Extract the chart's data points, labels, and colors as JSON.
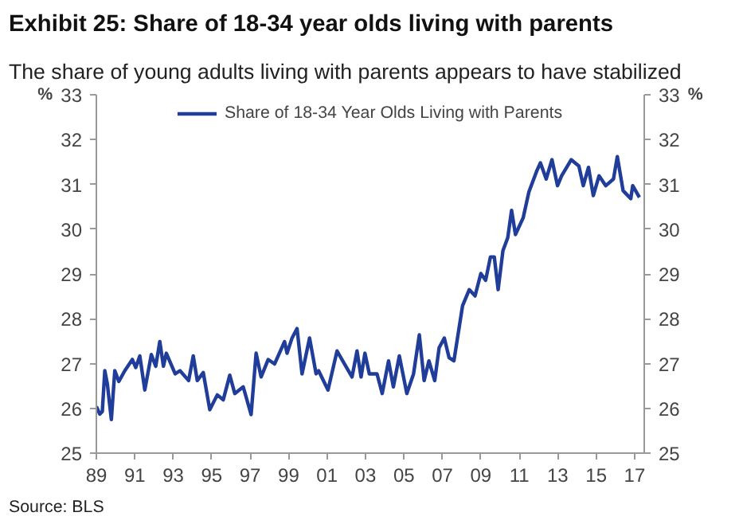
{
  "chart_data": {
    "type": "line",
    "title": "Exhibit 25: Share of 18-34 year olds living with parents",
    "subtitle": "The share of young adults living with parents appears to have stabilized",
    "ylabel": "%",
    "y2label": "%",
    "x": [
      1989.0,
      1989.18,
      1989.31,
      1989.44,
      1989.57,
      1989.78,
      1989.96,
      1990.17,
      1990.48,
      1990.87,
      1991.05,
      1991.26,
      1991.52,
      1991.86,
      1992.09,
      1992.3,
      1992.49,
      1992.64,
      1993.1,
      1993.35,
      1993.8,
      1994.04,
      1994.25,
      1994.56,
      1994.9,
      1995.29,
      1995.6,
      1995.94,
      1996.2,
      1996.64,
      1997.05,
      1997.31,
      1997.57,
      1997.94,
      1998.27,
      1998.79,
      1998.92,
      1999.18,
      1999.44,
      1999.7,
      2000.09,
      2000.43,
      2000.56,
      2001.05,
      2001.52,
      2001.91,
      2002.3,
      2002.56,
      2002.77,
      2002.97,
      2003.2,
      2003.6,
      2003.87,
      2004.2,
      2004.45,
      2004.76,
      2005.15,
      2005.5,
      2005.8,
      2006.05,
      2006.3,
      2006.6,
      2006.83,
      2007.1,
      2007.35,
      2007.6,
      2008.05,
      2008.4,
      2008.7,
      2009.0,
      2009.25,
      2009.5,
      2009.7,
      2009.9,
      2010.15,
      2010.4,
      2010.6,
      2010.8,
      2011.2,
      2011.5,
      2011.9,
      2012.1,
      2012.4,
      2012.7,
      2012.99,
      2013.2,
      2013.7,
      2014.1,
      2014.33,
      2014.6,
      2014.85,
      2015.15,
      2015.5,
      2015.9,
      2016.1,
      2016.4,
      2016.8,
      2016.9,
      2017.25
    ],
    "series": [
      {
        "name": "Share of 18-34 Year Olds Living with Parents",
        "color": "#1f3d99",
        "values": [
          26.04,
          25.87,
          25.93,
          26.84,
          26.55,
          25.75,
          26.84,
          26.6,
          26.84,
          27.09,
          26.91,
          27.17,
          26.41,
          27.2,
          26.94,
          27.49,
          26.94,
          27.23,
          26.77,
          26.84,
          26.62,
          27.17,
          26.62,
          26.8,
          25.97,
          26.3,
          26.19,
          26.74,
          26.33,
          26.48,
          25.86,
          27.23,
          26.7,
          27.09,
          26.99,
          27.49,
          27.23,
          27.57,
          27.78,
          26.77,
          27.57,
          26.77,
          26.84,
          26.41,
          27.28,
          26.99,
          26.7,
          27.28,
          26.7,
          27.23,
          26.77,
          26.77,
          26.33,
          27.06,
          26.48,
          27.17,
          26.33,
          26.77,
          27.64,
          26.62,
          27.06,
          26.62,
          27.35,
          27.57,
          27.13,
          27.06,
          28.29,
          28.65,
          28.51,
          29.01,
          28.86,
          29.38,
          29.38,
          28.65,
          29.52,
          29.81,
          30.42,
          29.88,
          30.25,
          30.83,
          31.29,
          31.48,
          31.12,
          31.55,
          30.97,
          31.19,
          31.55,
          31.41,
          30.97,
          31.38,
          30.75,
          31.19,
          30.97,
          31.12,
          31.62,
          30.86,
          30.68,
          30.97,
          30.71
        ]
      }
    ],
    "xlim": [
      1989.0,
      2017.5
    ],
    "xticks": [
      {
        "value": 1989,
        "label": "89"
      },
      {
        "value": 1991,
        "label": "91"
      },
      {
        "value": 1993,
        "label": "93"
      },
      {
        "value": 1995,
        "label": "95"
      },
      {
        "value": 1997,
        "label": "97"
      },
      {
        "value": 1999,
        "label": "99"
      },
      {
        "value": 2001,
        "label": "01"
      },
      {
        "value": 2003,
        "label": "03"
      },
      {
        "value": 2005,
        "label": "05"
      },
      {
        "value": 2007,
        "label": "07"
      },
      {
        "value": 2009,
        "label": "09"
      },
      {
        "value": 2011,
        "label": "11"
      },
      {
        "value": 2013,
        "label": "13"
      },
      {
        "value": 2015,
        "label": "15"
      },
      {
        "value": 2017,
        "label": "17"
      }
    ],
    "ylim": [
      25,
      33
    ],
    "yticks": [
      25,
      26,
      27,
      28,
      29,
      30,
      31,
      32,
      33
    ],
    "y2lim": [
      25,
      33
    ],
    "y2ticks": [
      25,
      26,
      27,
      28,
      29,
      30,
      31,
      32,
      33
    ],
    "grid": false,
    "legend": "top",
    "annotations": [
      "Source: BLS"
    ]
  }
}
